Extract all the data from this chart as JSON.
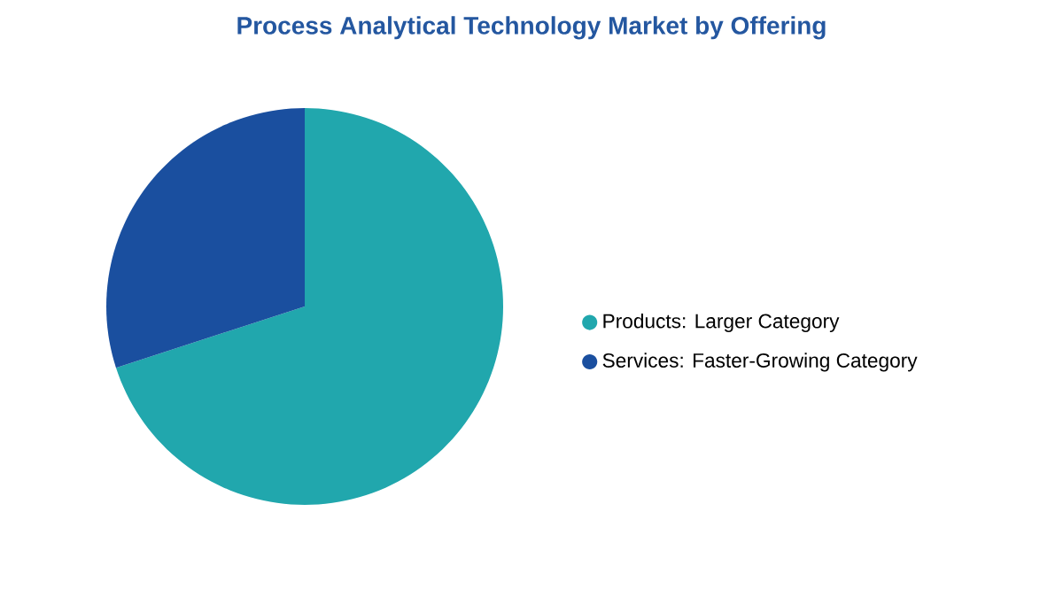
{
  "chart_data": {
    "type": "pie",
    "title": "Process Analytical Technology Market by Offering",
    "categories": [
      "Products:  Larger Category",
      "Services:  Faster-Growing Category"
    ],
    "values": [
      70,
      30
    ],
    "colors": [
      "#21a7ad",
      "#1a4f9f"
    ],
    "legend": "right"
  }
}
